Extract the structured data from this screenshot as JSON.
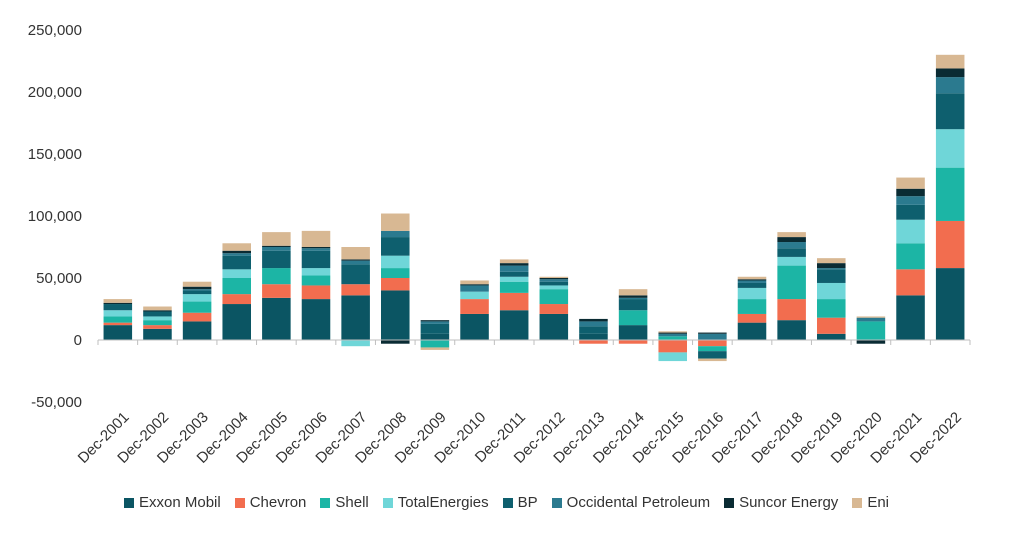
{
  "chart_data": {
    "type": "bar",
    "stacked": true,
    "categories": [
      "Dec-2001",
      "Dec-2002",
      "Dec-2003",
      "Dec-2004",
      "Dec-2005",
      "Dec-2006",
      "Dec-2007",
      "Dec-2008",
      "Dec-2009",
      "Dec-2010",
      "Dec-2011",
      "Dec-2012",
      "Dec-2013",
      "Dec-2014",
      "Dec-2015",
      "Dec-2016",
      "Dec-2017",
      "Dec-2018",
      "Dec-2019",
      "Dec-2020",
      "Dec-2021",
      "Dec-2022"
    ],
    "ylim": [
      -50000,
      250000
    ],
    "yticks": [
      -50000,
      0,
      50000,
      100000,
      150000,
      200000,
      250000
    ],
    "ytick_labels": [
      "-50,000",
      "0",
      "50,000",
      "100,000",
      "150,000",
      "200,000",
      "250,000"
    ],
    "legend_position": "bottom",
    "series": [
      {
        "name": "Exxon Mobil",
        "color": "#0b5563",
        "values": [
          12000,
          9000,
          15000,
          29000,
          34000,
          33000,
          36000,
          40000,
          5000,
          21000,
          24000,
          21000,
          5000,
          12000,
          0,
          0,
          14000,
          16000,
          5000,
          0,
          36000,
          58000
        ]
      },
      {
        "name": "Chevron",
        "color": "#f26d4f",
        "values": [
          2000,
          3000,
          7000,
          8000,
          11000,
          11000,
          9000,
          10000,
          0,
          12000,
          14000,
          8000,
          -3000,
          -3000,
          -10000,
          -5000,
          7000,
          17000,
          13000,
          0,
          21000,
          38000
        ]
      },
      {
        "name": "Shell",
        "color": "#1cb5a5",
        "values": [
          5000,
          4000,
          9000,
          13000,
          13000,
          8000,
          0,
          8000,
          -6000,
          0,
          9000,
          12000,
          0,
          12000,
          3000,
          -4000,
          12000,
          27000,
          15000,
          15000,
          21000,
          43000
        ]
      },
      {
        "name": "TotalEnergies",
        "color": "#6fd6d8",
        "values": [
          5000,
          3000,
          6000,
          7000,
          0,
          6000,
          -5000,
          10000,
          0,
          6000,
          4000,
          3000,
          0,
          0,
          -7000,
          0,
          9000,
          7000,
          13000,
          0,
          19000,
          31000
        ]
      },
      {
        "name": "BP",
        "color": "#0e5f6e",
        "values": [
          5000,
          4000,
          3000,
          11000,
          14000,
          14000,
          16000,
          15000,
          8000,
          0,
          4000,
          3000,
          6000,
          9000,
          0,
          -6000,
          4000,
          7000,
          11000,
          0,
          12000,
          29000
        ]
      },
      {
        "name": "Occidental Petroleum",
        "color": "#2b7a8f",
        "values": [
          0,
          0,
          1000,
          2000,
          3000,
          2000,
          3000,
          5000,
          2000,
          5000,
          5000,
          2000,
          4000,
          1000,
          2000,
          5000,
          2000,
          5000,
          1000,
          3000,
          7000,
          13000
        ]
      },
      {
        "name": "Suncor Energy",
        "color": "#0a2b33",
        "values": [
          1000,
          1000,
          2000,
          2000,
          1000,
          1000,
          1000,
          -3000,
          1000,
          1000,
          2000,
          1000,
          2000,
          2000,
          1000,
          1000,
          1000,
          4000,
          4000,
          -3000,
          6000,
          7000
        ]
      },
      {
        "name": "Eni",
        "color": "#d8b893",
        "values": [
          3000,
          3000,
          4000,
          6000,
          11000,
          13000,
          10000,
          14000,
          -2000,
          3000,
          3000,
          1000,
          0,
          5000,
          1000,
          -2000,
          2000,
          4000,
          4000,
          1000,
          9000,
          11000
        ]
      }
    ]
  }
}
